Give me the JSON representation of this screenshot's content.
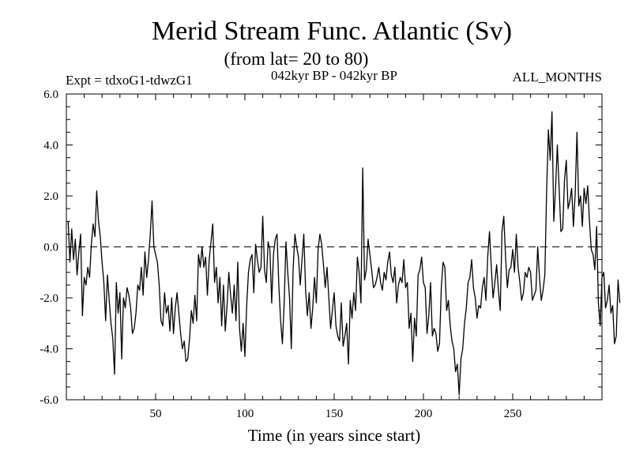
{
  "chart_data": {
    "type": "line",
    "title": "Merid Stream Func. Atlantic (Sv)",
    "subtitle": "(from lat= 20 to 80)",
    "expt_label": "Expt = tdxoG1-tdwzG1",
    "period_label": "042kyr BP - 042kyr BP",
    "months_label": "ALL_MONTHS",
    "xlabel": "Time (in years since start)",
    "ylabel": "",
    "xlim": [
      0,
      300
    ],
    "ylim": [
      -6,
      6
    ],
    "x_ticks": [
      50,
      100,
      150,
      200,
      250
    ],
    "y_ticks": [
      -6.0,
      -4.0,
      -2.0,
      0.0,
      2.0,
      4.0,
      6.0
    ],
    "zero_line": {
      "value": 0,
      "style": "dashed"
    },
    "series": [
      {
        "name": "Meridional stream function",
        "x_start": 1,
        "x_step": 1,
        "values": [
          1.0,
          -0.6,
          0.7,
          -0.5,
          0.3,
          -1.1,
          -0.2,
          0.5,
          -2.7,
          -1.2,
          -1.5,
          -0.8,
          -1.2,
          0.1,
          0.9,
          0.4,
          2.2,
          1.0,
          0.4,
          -0.6,
          -1.4,
          -2.9,
          -1.1,
          -2.1,
          -3.0,
          -3.6,
          -5.0,
          -1.4,
          -2.6,
          -1.8,
          -4.4,
          -2.0,
          -2.4,
          -1.6,
          -1.9,
          -2.4,
          -3.4,
          -3.2,
          -2.6,
          -1.5,
          -1.7,
          -0.8,
          -1.9,
          -0.2,
          -1.2,
          -0.5,
          0.5,
          1.8,
          0.0,
          -0.3,
          -0.6,
          -1.5,
          -2.9,
          -3.1,
          -1.8,
          -2.6,
          -2.3,
          -3.3,
          -2.0,
          -3.4,
          -2.4,
          -1.8,
          -2.6,
          -3.4,
          -4.0,
          -3.7,
          -4.5,
          -4.4,
          -3.6,
          -2.5,
          -3.0,
          -1.9,
          -2.9,
          -0.3,
          -0.8,
          0.0,
          -0.8,
          -0.4,
          -1.9,
          -0.5,
          0.2,
          0.9,
          -1.4,
          -0.8,
          -2.2,
          -1.2,
          -3.1,
          -1.5,
          -3.3,
          -2.3,
          -1.0,
          -1.9,
          -2.6,
          -1.5,
          -2.9,
          -0.6,
          -3.2,
          -4.1,
          -3.0,
          -4.3,
          -2.3,
          -1.0,
          -0.5,
          -0.3,
          -1.8,
          0.1,
          -0.5,
          -1.0,
          -0.8,
          1.2,
          -0.9,
          -1.4,
          0.2,
          -0.1,
          -2.2,
          -0.3,
          0.3,
          0.5,
          -1.5,
          -2.9,
          -3.8,
          -2.2,
          0.2,
          -1.0,
          -2.0,
          -4.0,
          -0.9,
          0.5,
          0.0,
          -0.4,
          -1.5,
          -0.5,
          0.5,
          -1.7,
          -2.7,
          -1.8,
          -3.2,
          -2.4,
          -1.2,
          -2.2,
          -0.1,
          0.5,
          0.1,
          -0.7,
          -1.6,
          -0.8,
          -2.0,
          -3.2,
          -2.5,
          -1.8,
          -3.1,
          -3.5,
          -3.7,
          -2.2,
          -3.9,
          -3.5,
          -3.0,
          -4.6,
          -2.1,
          -2.8,
          -1.8,
          -2.5,
          -0.4,
          -1.0,
          -2.2,
          3.1,
          -1.3,
          -0.9,
          0.3,
          -0.3,
          -0.9,
          -1.6,
          -1.5,
          -1.2,
          -0.8,
          -1.4,
          -1.7,
          -1.0,
          -1.3,
          -0.6,
          -0.2,
          -1.1,
          -1.4,
          -0.8,
          -2.2,
          -1.5,
          -1.2,
          -1.4,
          -0.5,
          -1.6,
          -1.4,
          -3.2,
          -2.6,
          -4.5,
          -2.8,
          -3.5,
          -1.1,
          -0.9,
          -0.4,
          -1.4,
          -1.6,
          -3.4,
          -2.7,
          -1.4,
          -3.5,
          -3.2,
          -3.4,
          -4.1,
          -3.8,
          -1.6,
          -0.6,
          -0.8,
          -2.5,
          -2.1,
          -3.1,
          -3.7,
          -4.0,
          -4.9,
          -4.6,
          -5.8,
          -4.4,
          -4.0,
          -3.0,
          -2.4,
          -1.4,
          -1.2,
          -0.5,
          -1.6,
          -2.0,
          -2.8,
          -2.3,
          -2.4,
          -1.6,
          -1.2,
          -2.1,
          -0.4,
          0.6,
          -0.8,
          -2.0,
          -1.4,
          -0.7,
          -1.7,
          -2.5,
          0.6,
          1.2,
          -0.4,
          -1.6,
          -0.9,
          -0.8,
          -0.1,
          -1.0,
          0.5,
          -0.8,
          -1.4,
          -2.1,
          -1.8,
          -1.0,
          -1.2,
          -0.8,
          -1.0,
          -2.1,
          -1.9,
          -1.7,
          0.0,
          -1.2,
          -2.1,
          -1.7,
          -1.1,
          2.2,
          4.6,
          3.4,
          5.3,
          1.0,
          2.3,
          4.0,
          2.3,
          0.6,
          0.7,
          2.6,
          3.4,
          1.5,
          1.8,
          2.3,
          0.8,
          2.1,
          4.5,
          1.6,
          2.0,
          0.8,
          2.3,
          1.7,
          2.4,
          1.0,
          -0.1,
          -0.3,
          -0.9,
          0.8,
          -2.2,
          -3.1,
          -1.2,
          -1.0,
          -2.4,
          -2.1,
          -1.5,
          -2.6,
          -2.3,
          -3.8,
          -3.5,
          -1.3,
          -2.2
        ]
      }
    ]
  }
}
